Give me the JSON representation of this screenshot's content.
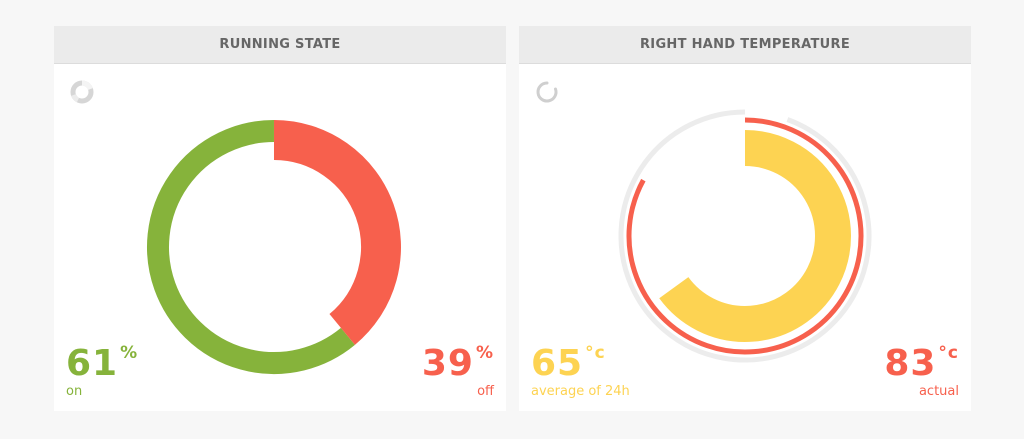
{
  "colors": {
    "green": "#86b33b",
    "red": "#f7604d",
    "yellow": "#fdd352",
    "track": "#ececec",
    "header_bg": "#ebebeb",
    "header_text": "#666666"
  },
  "running_state": {
    "title": "RUNNING STATE",
    "on": {
      "value": "61",
      "unit": "%",
      "label": "on"
    },
    "off": {
      "value": "39",
      "unit": "%",
      "label": "off"
    }
  },
  "right_hand_temperature": {
    "title": "RIGHT HAND TEMPERATURE",
    "average": {
      "value": "65",
      "unit": "°c",
      "label": "average of 24h"
    },
    "actual": {
      "value": "83",
      "unit": "°c",
      "label": "actual"
    }
  },
  "chart_data": [
    {
      "type": "pie",
      "title": "RUNNING STATE",
      "categories": [
        "on",
        "off"
      ],
      "values": [
        61,
        39
      ],
      "colors": [
        "#86b33b",
        "#f7604d"
      ]
    },
    {
      "type": "pie",
      "title": "RIGHT HAND TEMPERATURE",
      "categories": [
        "average of 24h",
        "actual"
      ],
      "values": [
        65,
        83
      ],
      "colors": [
        "#fdd352",
        "#f7604d"
      ]
    }
  ]
}
